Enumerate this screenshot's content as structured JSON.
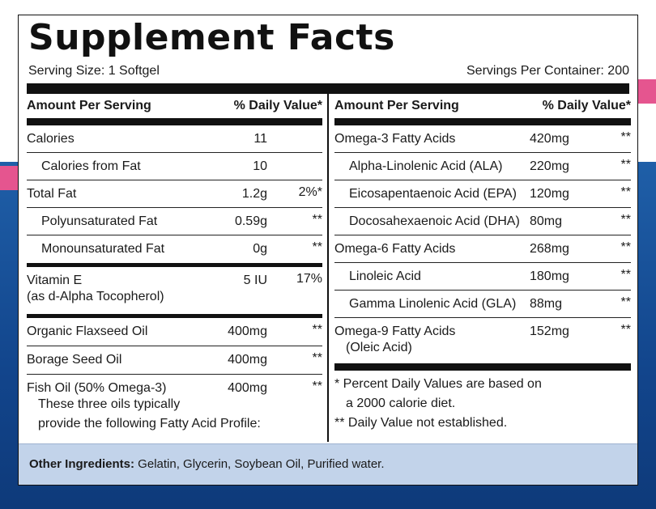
{
  "title": "Supplement Facts",
  "serving_size": "Serving Size: 1 Softgel",
  "servings_per_container": "Servings Per Container: 200",
  "headers": {
    "amount": "Amount Per Serving",
    "dv": "% Daily Value*"
  },
  "left_rows": [
    {
      "name": "Calories",
      "amount": "11",
      "dv": ""
    },
    {
      "name": "Calories from Fat",
      "amount": "10",
      "dv": ""
    },
    {
      "name": "Total Fat",
      "amount": "1.2g",
      "dv": "2%*"
    },
    {
      "name": "Polyunsaturated Fat",
      "amount": "0.59g",
      "dv": "**"
    },
    {
      "name": "Monounsaturated Fat",
      "amount": "0g",
      "dv": "**"
    },
    {
      "name": "Vitamin E",
      "sub": "(as d-Alpha Tocopherol)",
      "amount": "5 IU",
      "dv": "17%"
    },
    {
      "name": "Organic Flaxseed Oil",
      "amount": "400mg",
      "dv": "**"
    },
    {
      "name": "Borage Seed Oil",
      "amount": "400mg",
      "dv": "**"
    },
    {
      "name": "Fish Oil (50% Omega-3)",
      "amount": "400mg",
      "dv": "**",
      "note_line1": "These three oils typically",
      "note_line2": "provide the following Fatty Acid Profile:"
    }
  ],
  "right_rows": [
    {
      "name": "Omega-3 Fatty Acids",
      "amount": "420mg",
      "dv": "**"
    },
    {
      "name": "Alpha-Linolenic Acid (ALA)",
      "amount": "220mg",
      "dv": "**"
    },
    {
      "name": "Eicosapentaenoic Acid (EPA)",
      "amount": "120mg",
      "dv": "**"
    },
    {
      "name": "Docosahexaenoic Acid (DHA)",
      "amount": "80mg",
      "dv": "**"
    },
    {
      "name": "Omega-6 Fatty Acids",
      "amount": "268mg",
      "dv": "**"
    },
    {
      "name": "Linoleic Acid",
      "amount": "180mg",
      "dv": "**"
    },
    {
      "name": "Gamma Linolenic Acid (GLA)",
      "amount": "88mg",
      "dv": "**"
    },
    {
      "name": "Omega-9 Fatty Acids",
      "sub": "(Oleic Acid)",
      "amount": "152mg",
      "dv": "**"
    }
  ],
  "footnotes": {
    "line1": "* Percent Daily Values are based on",
    "line2": "a 2000 calorie diet.",
    "line3": "** Daily Value not established."
  },
  "other_ingredients": {
    "label": "Other Ingredients:",
    "text": " Gelatin, Glycerin, Soybean Oil, Purified water."
  },
  "colors": {
    "background_blue": "#12458c",
    "accent_pink": "#e5558f",
    "footer_band": "#c2d3ea",
    "ink": "#111111"
  }
}
